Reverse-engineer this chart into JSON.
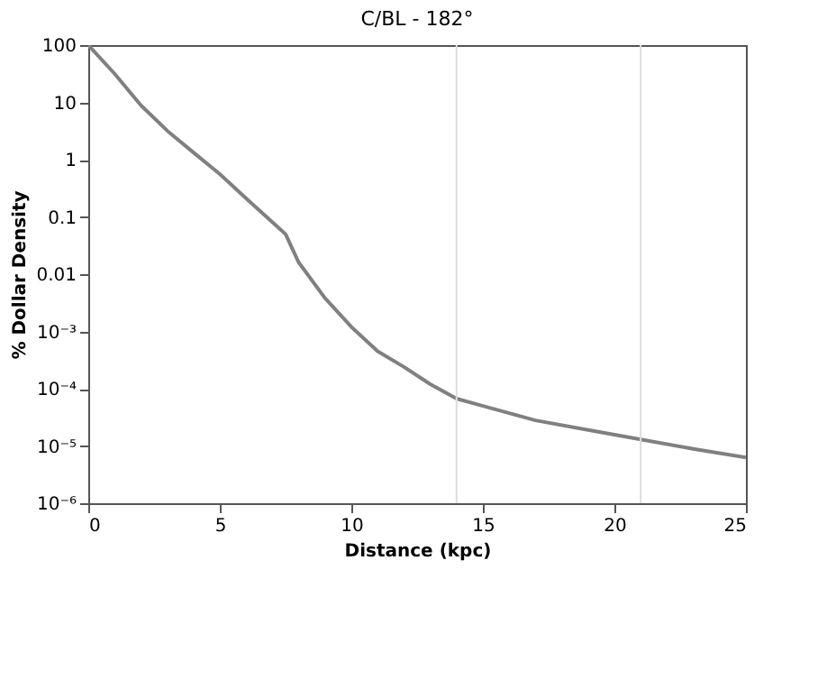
{
  "chart_data": {
    "type": "line",
    "title": "C/BL - 182°",
    "xlabel": "Distance (kpc)",
    "ylabel": "% Dollar Density",
    "log": true,
    "x": [
      0,
      1,
      2,
      3,
      4,
      5,
      6,
      7.5,
      8,
      9,
      10,
      11,
      12,
      13,
      14,
      15,
      17,
      19,
      21,
      23,
      25
    ],
    "series": [
      {
        "color": "#808080",
        "values": [
          100,
          31.6,
          8.9,
          3.2,
          1.33,
          0.56,
          0.21,
          0.05,
          0.016,
          0.0038,
          0.0012,
          0.00045,
          0.00024,
          0.00012,
          6.7e-05,
          5e-05,
          2.8e-05,
          1.9e-05,
          1.3e-05,
          8.9e-06,
          6.3e-06
        ]
      }
    ],
    "xlim": [
      0,
      25
    ],
    "xticks": [
      0,
      5,
      10,
      15,
      20,
      25
    ],
    "ylim": [
      1e-06,
      100
    ],
    "yticks": [
      100,
      10,
      1,
      0.1,
      0.01,
      {
        "value": 0.001,
        "label": "10⁻³"
      },
      {
        "value": 0.0001,
        "label": "10⁻⁴"
      },
      {
        "value": 1e-05,
        "label": "10⁻⁵"
      },
      {
        "value": 1e-06,
        "label": "10⁻⁶"
      }
    ],
    "ref_lines": [
      {
        "axis": "x",
        "value": 14,
        "color": "#dddddd"
      },
      {
        "axis": "x",
        "value": 21,
        "color": "#dddddd"
      }
    ],
    "grid": false,
    "marker": "none",
    "line_style": "solid"
  }
}
